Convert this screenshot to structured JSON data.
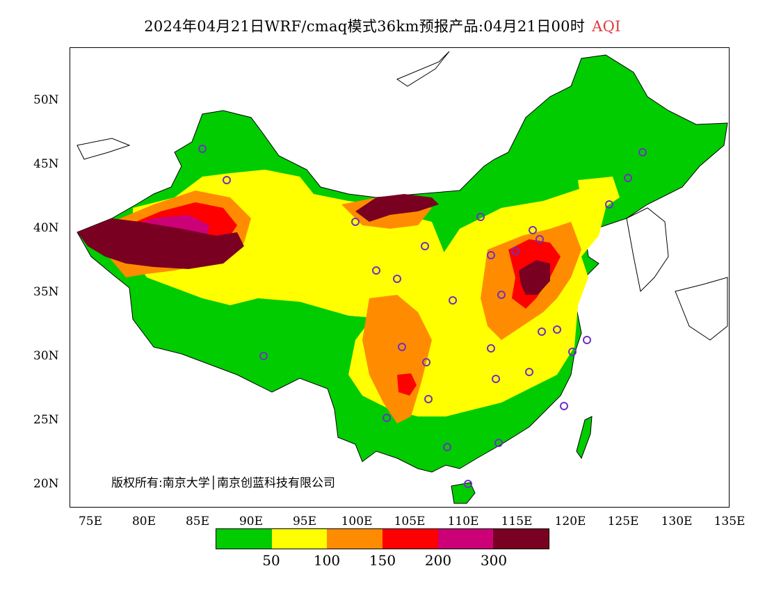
{
  "title": {
    "main": "2024年04月21日WRF/cmaq模式36km预报产品:04月21日00时",
    "variable": "AQI",
    "variable_color": "#e0383c"
  },
  "axes": {
    "y_ticks": [
      "50N",
      "45N",
      "40N",
      "35N",
      "30N",
      "25N",
      "20N"
    ],
    "x_ticks": [
      "75E",
      "80E",
      "85E",
      "90E",
      "95E",
      "100E",
      "105E",
      "110E",
      "115E",
      "120E",
      "125E",
      "130E",
      "135E"
    ]
  },
  "copyright": "版权所有:南京大学│南京创蓝科技有限公司",
  "legend": {
    "colors": [
      "#00cc00",
      "#ffff00",
      "#ff8c00",
      "#ff0000",
      "#cc0077",
      "#7a0022"
    ],
    "labels": [
      "50",
      "100",
      "150",
      "200",
      "300"
    ]
  },
  "colors": {
    "boundary": "#000000",
    "station_marker": "#7030c0"
  }
}
